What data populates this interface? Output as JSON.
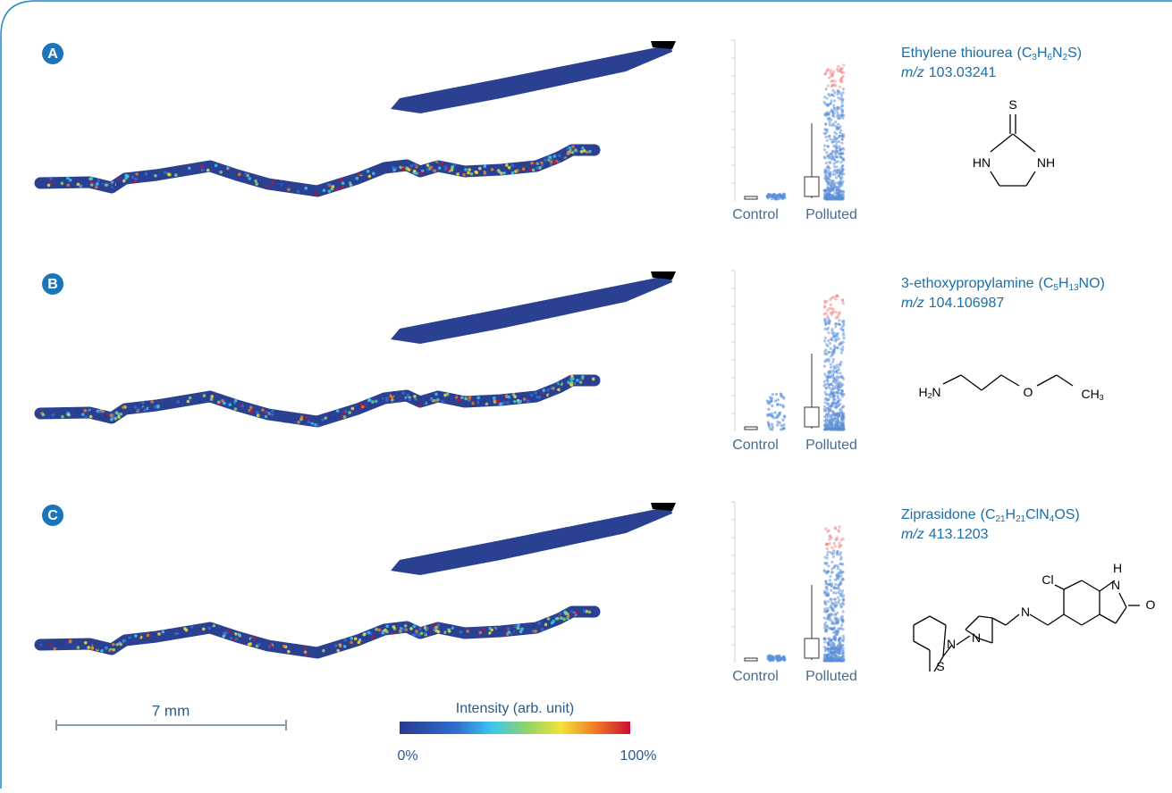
{
  "panels": [
    {
      "label": "A",
      "name": "Ethylene thiourea",
      "formula": [
        "(C",
        "3",
        "H",
        "6",
        "N",
        "2",
        "S)"
      ],
      "mz_label": "m/z",
      "mz": "103.03241",
      "groups": [
        "Control",
        "Polluted"
      ],
      "structure_labels": [
        [
          "S"
        ],
        [
          "HN"
        ],
        [
          "NH"
        ]
      ]
    },
    {
      "label": "B",
      "name": "3-ethoxypropylamine",
      "formula": [
        "(C",
        "5",
        "H",
        "13",
        "NO)"
      ],
      "mz_label": "m/z",
      "mz": "104.106987",
      "groups": [
        "Control",
        "Polluted"
      ],
      "structure_labels": [
        [
          "H",
          "2",
          "N"
        ],
        [
          "O"
        ],
        [
          "CH",
          "3"
        ]
      ]
    },
    {
      "label": "C",
      "name": "Ziprasidone",
      "formula": [
        "(C",
        "21",
        "H",
        "21",
        "ClN",
        "4",
        "OS)"
      ],
      "mz_label": "m/z",
      "mz": "413.1203",
      "groups": [
        "Control",
        "Polluted"
      ],
      "structure_labels": [
        [
          "Cl"
        ],
        [
          "H"
        ],
        [
          "N"
        ],
        [
          "O"
        ],
        [
          "N"
        ],
        [
          "N"
        ],
        [
          "N"
        ],
        [
          "S"
        ]
      ]
    }
  ],
  "scale_bar": "7 mm",
  "colorbar": {
    "title": "Intensity (arb. unit)",
    "min": "0%",
    "max": "100%"
  }
}
